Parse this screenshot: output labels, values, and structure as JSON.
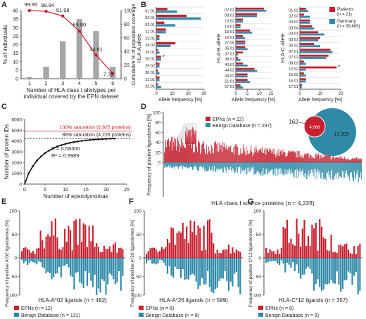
{
  "colors": {
    "epn": "#c8202f",
    "benign": "#2f8aa8",
    "bar": "#a6a6a6",
    "line": "#c8202f",
    "axis": "#222222",
    "grid": "#999999"
  },
  "panels": {
    "A": "A",
    "B": "B",
    "C": "C",
    "D": "D",
    "E": "E",
    "F": "F",
    "G": "G"
  },
  "chart_data": [
    {
      "id": "A",
      "type": "bar",
      "categories": [
        "1",
        "2",
        "3",
        "4",
        "5",
        "6"
      ],
      "series": [
        {
          "values": [
            1,
            7,
            22,
            35,
            28,
            7
          ]
        }
      ],
      "line": {
        "values": [
          99.95,
          98.94,
          91.98,
          69.8,
          34.61,
          7.79
        ],
        "labels": [
          "99.95",
          "98.94",
          "91.98",
          "69.80",
          "34.61",
          "7.79"
        ]
      },
      "xlabel": "Number of HLA class I allotypes per individual covered by the EPN dataset",
      "ylabel": "% of individuals",
      "y2label": "Cumulative % of population coverage",
      "yticks": [
        "0",
        "5",
        "10",
        "15",
        "20",
        "25",
        "30",
        "35",
        "40"
      ],
      "y2ticks": [
        "0",
        "20",
        "40",
        "60",
        "80",
        "100"
      ],
      "ylim": [
        0,
        40
      ],
      "y2lim": [
        0,
        100
      ]
    },
    {
      "id": "B",
      "type": "bar",
      "legend": [
        "Patients",
        "(n = 21)",
        "Germany",
        "(n = 39,689)"
      ],
      "xlabel": "Allele frequency [%]",
      "subcharts": [
        {
          "title": "HLA-A allele",
          "ticks": [
            "0",
            "10",
            "20",
            "30"
          ],
          "max": 30,
          "alleles": [
            "01:01",
            "02:01",
            "03:01",
            "11:01",
            "23:01",
            "24:02",
            "25:01",
            "26:01",
            "29:02",
            "30:01",
            "31:01",
            "32:01"
          ],
          "patients": [
            7,
            19,
            5,
            6,
            2,
            12,
            1,
            3,
            2,
            1,
            2,
            1
          ],
          "germany": [
            13,
            28,
            12,
            6,
            2,
            9,
            2,
            3,
            2,
            2,
            2,
            3
          ],
          "marker_index": 7,
          "marker": "*"
        },
        {
          "title": "HLA-B allele",
          "ticks": [
            "0",
            "5",
            "10",
            "15"
          ],
          "max": 15,
          "alleles": [
            "07:02",
            "08:01",
            "13:02",
            "14:01",
            "15:01",
            "18:01",
            "27:05",
            "35:01",
            "37:01",
            "38:01",
            "40:01",
            "44:02",
            "44:03",
            "51:01",
            "57:01"
          ],
          "patients": [
            12,
            9,
            3,
            2,
            6,
            3,
            4,
            4,
            3,
            1,
            3,
            8,
            5,
            5,
            2
          ],
          "germany": [
            13,
            9,
            3,
            2,
            7,
            4,
            4,
            5,
            1,
            2,
            5,
            9,
            5,
            6,
            3
          ]
        },
        {
          "title": "HLA-C allele",
          "ticks": [
            "0",
            "10",
            "20"
          ],
          "max": 20,
          "alleles": [
            "01:02",
            "02:02",
            "03:03",
            "03:04",
            "04:01",
            "05:01",
            "06:02",
            "07:01",
            "07:02",
            "08:02",
            "12:02",
            "15:02",
            "16:01",
            "17:01"
          ],
          "patients": [
            3,
            2,
            5,
            6,
            9,
            10,
            7,
            15,
            14,
            2,
            18,
            2,
            3,
            1
          ],
          "germany": [
            4,
            5,
            5,
            7,
            12,
            9,
            10,
            16,
            13,
            3,
            3,
            3,
            3,
            1
          ],
          "marker_index": 10,
          "marker": "*"
        }
      ]
    },
    {
      "id": "C",
      "type": "line",
      "x": [
        1,
        2,
        3,
        4,
        5,
        6,
        7,
        8,
        9,
        10,
        11,
        12,
        13,
        14,
        15,
        16,
        17,
        18,
        19,
        20,
        21,
        22
      ],
      "values": [
        1020,
        1650,
        2180,
        2560,
        2880,
        3120,
        3320,
        3490,
        3620,
        3730,
        3820,
        3900,
        3960,
        4010,
        4060,
        4100,
        4130,
        4160,
        4180,
        4200,
        4215,
        4228
      ],
      "xlabel": "Number of ependymomas",
      "ylabel": "Number of protein IDs",
      "xticks": [
        "0",
        "5",
        "10",
        "15",
        "20",
        "25"
      ],
      "yticks": [
        "0",
        "1000",
        "2000",
        "3000",
        "4000",
        "5000",
        "6000"
      ],
      "xlim": [
        0,
        25
      ],
      "ylim": [
        0,
        6000
      ],
      "saturation100": {
        "value": 4925,
        "label": "100% saturation (4,925 proteins)"
      },
      "saturation86": {
        "value": 4228,
        "label": "86% saturation (4,228 proteins)"
      },
      "k": "K = 0.08300",
      "r2": "R² = 0.9989"
    },
    {
      "id": "D",
      "type": "bar",
      "xlabel": "HLA class I source proteins (n = 4,228)",
      "ylabel": "Frequency of positive ligandomes [%]",
      "legend": [
        "EPNs (n = 22)",
        "Benign Database (n = 297)"
      ],
      "yticks": [
        "0",
        "20",
        "40",
        "60",
        "80",
        "100"
      ],
      "venn": {
        "epn_only": "162",
        "overlap": "4,066",
        "benign_only": "13,309"
      }
    },
    {
      "id": "E",
      "type": "bar",
      "xlabel": "HLA-A*02 ligands (n = 482)",
      "ylabel": "Frequency of positive A*02 ligandomes [%]",
      "legend": [
        "EPNs (n = 12)",
        "Benign Database (n = 131)"
      ],
      "yticks": [
        "100",
        "50",
        "0",
        "50",
        "100"
      ]
    },
    {
      "id": "F",
      "type": "bar",
      "xlabel": "HLA-A*26 ligands (n = 599)",
      "ylabel": "Frequency of positive A*26 ligandomes [%]",
      "legend": [
        "EPNs (n = 6)",
        "Benign Database (n = 8)"
      ],
      "yticks": [
        "100",
        "50",
        "0",
        "50",
        "100"
      ]
    },
    {
      "id": "G",
      "type": "bar",
      "xlabel": "HLA-C*12 ligands (n = 357)",
      "ylabel": "Frequency of positive C*12 ligandomes [%]",
      "legend": [
        "EPNs (n = 8)",
        "Benign Database (n = 8)"
      ],
      "yticks": [
        "100",
        "50",
        "0",
        "50",
        "100"
      ]
    }
  ]
}
